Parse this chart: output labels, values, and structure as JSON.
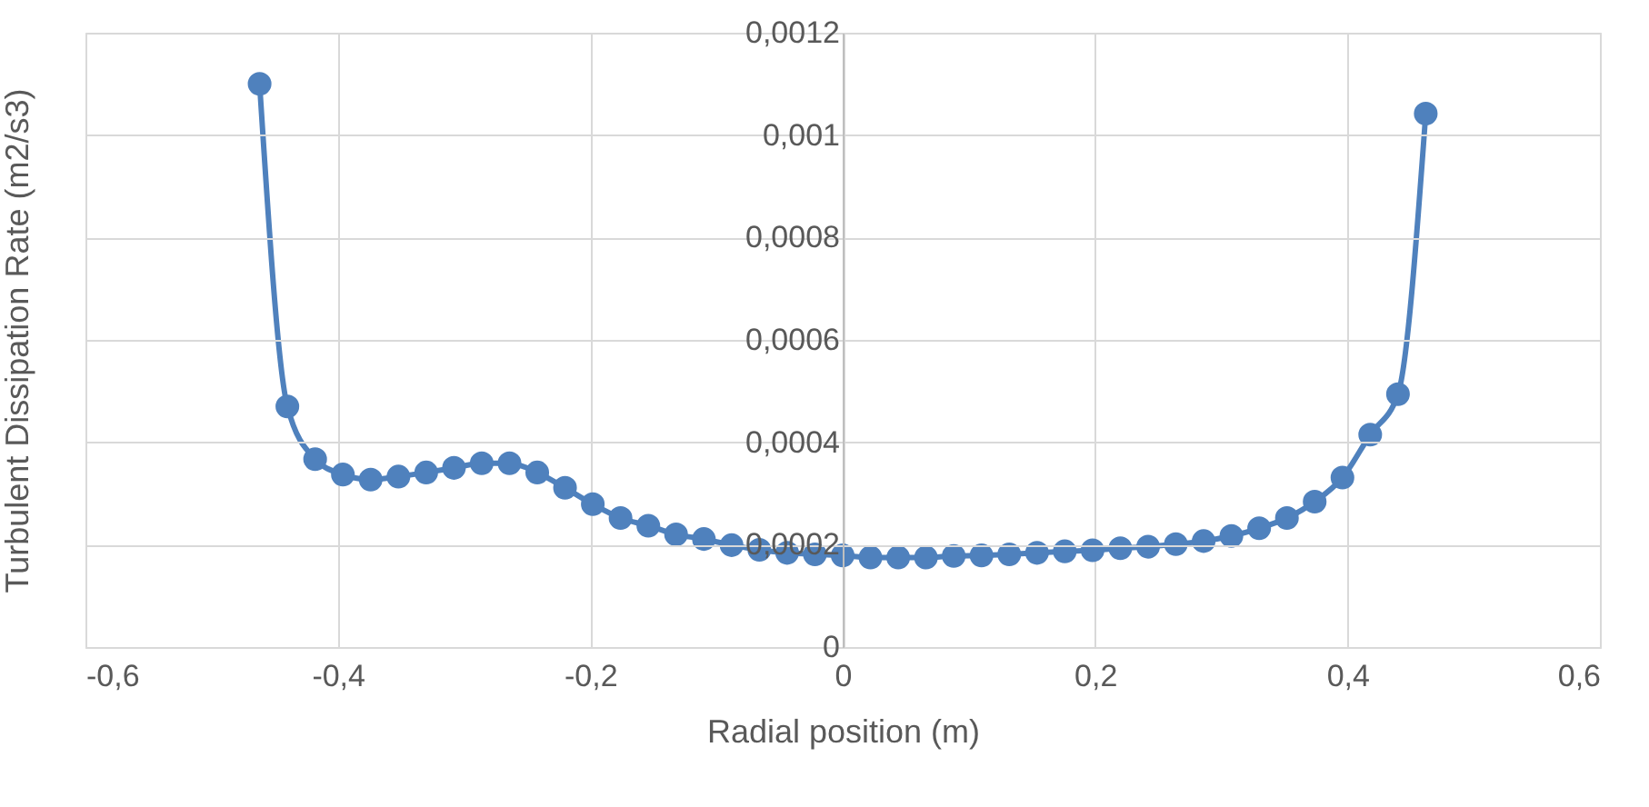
{
  "chart_data": {
    "type": "line",
    "xlabel": "Radial position (m)",
    "ylabel": "Turbulent Dissipation Rate (m2/s3)",
    "x": [
      -0.462,
      -0.44,
      -0.418,
      -0.396,
      -0.374,
      -0.352,
      -0.33,
      -0.308,
      -0.286,
      -0.264,
      -0.242,
      -0.22,
      -0.198,
      -0.176,
      -0.154,
      -0.132,
      -0.11,
      -0.088,
      -0.066,
      -0.044,
      -0.022,
      0,
      0.022,
      0.044,
      0.066,
      0.088,
      0.11,
      0.132,
      0.154,
      0.176,
      0.198,
      0.22,
      0.242,
      0.264,
      0.286,
      0.308,
      0.33,
      0.352,
      0.374,
      0.396,
      0.418,
      0.44,
      0.462
    ],
    "series": [
      {
        "color": "#4f81bd",
        "values": [
          0.0011,
          0.00047,
          0.000367,
          0.000337,
          0.000327,
          0.000333,
          0.000341,
          0.00035,
          0.000359,
          0.000359,
          0.000341,
          0.000311,
          0.000279,
          0.000252,
          0.000237,
          0.00022,
          0.000211,
          0.000199,
          0.00019,
          0.000184,
          0.000181,
          0.000179,
          0.000175,
          0.000175,
          0.000175,
          0.000178,
          0.000179,
          0.000181,
          0.000184,
          0.000187,
          0.000189,
          0.000193,
          0.000196,
          0.000201,
          0.000207,
          0.000217,
          0.000232,
          0.000252,
          0.000284,
          0.000331,
          0.000415,
          0.000494,
          0.001042
        ]
      }
    ],
    "xlim": [
      -0.6,
      0.6
    ],
    "xticks": [
      {
        "value": -0.6,
        "label": "-0,6"
      },
      {
        "value": -0.4,
        "label": "-0,4"
      },
      {
        "value": -0.2,
        "label": "-0,2"
      },
      0,
      {
        "value": 0.2,
        "label": "0,2"
      },
      {
        "value": 0.4,
        "label": "0,4"
      },
      {
        "value": 0.6,
        "label": "0,6"
      }
    ],
    "ylim": [
      0,
      0.0012
    ],
    "yticks": [
      0,
      {
        "value": 0.0002,
        "label": "0,0002"
      },
      {
        "value": 0.0004,
        "label": "0,0004"
      },
      {
        "value": 0.0006,
        "label": "0,0006"
      },
      {
        "value": 0.0008,
        "label": "0,0008"
      },
      {
        "value": 0.001,
        "label": "0,001"
      },
      {
        "value": 0.0012,
        "label": "0,0012"
      }
    ],
    "grid": true,
    "marker": "circle",
    "line_style": "solid"
  }
}
